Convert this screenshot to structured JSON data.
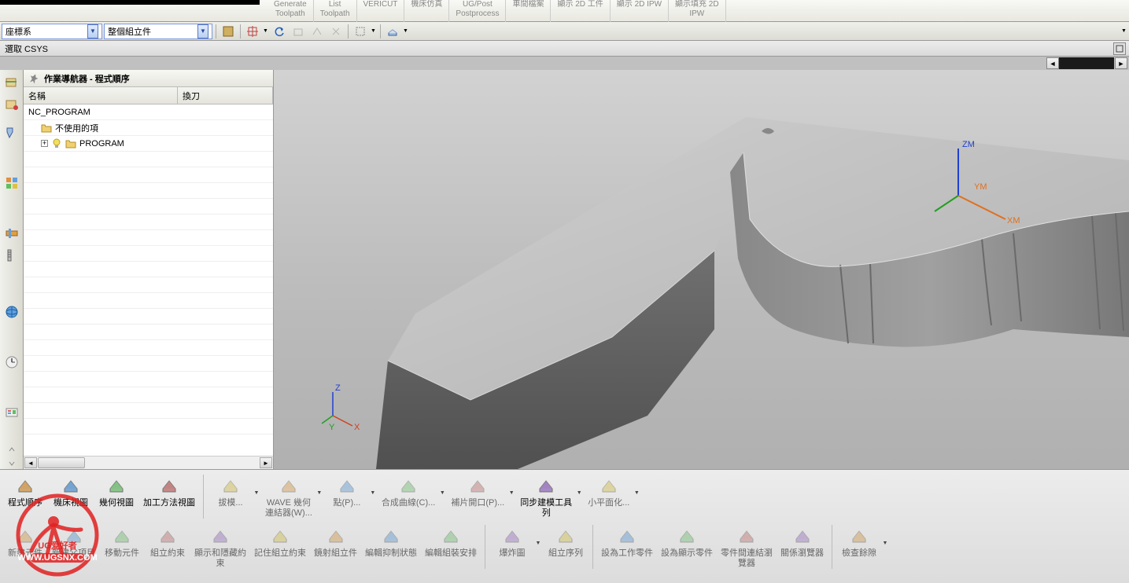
{
  "ribbon": {
    "groups": [
      {
        "line1": "Generate",
        "line2": "Toolpath"
      },
      {
        "line1": "List",
        "line2": "Toolpath"
      },
      {
        "line1": "VERICUT",
        "line2": ""
      },
      {
        "line1": "機床仿真",
        "line2": ""
      },
      {
        "line1": "UG/Post",
        "line2": "Postprocess"
      },
      {
        "line1": "車間檔案",
        "line2": ""
      },
      {
        "line1": "顯示 2D 工件",
        "line2": ""
      },
      {
        "line1": "顯示 2D IPW",
        "line2": ""
      },
      {
        "line1": "顯示填充 2D",
        "line2": "IPW"
      }
    ]
  },
  "toolbar2": {
    "combo1": "座標系",
    "combo2": "整個組立件"
  },
  "statusbar": {
    "text": "選取 CSYS"
  },
  "navigator": {
    "title": "作業導航器 - 程式順序",
    "columns": {
      "col1": "名稱",
      "col2": "換刀"
    },
    "rows": [
      {
        "icon": "none",
        "label": "NC_PROGRAM",
        "indent": 0,
        "expand": ""
      },
      {
        "icon": "folder",
        "label": "不使用的項",
        "indent": 1,
        "expand": ""
      },
      {
        "icon": "bulb",
        "label": "PROGRAM",
        "indent": 1,
        "expand": "+"
      }
    ]
  },
  "axes": {
    "main": {
      "x": "XM",
      "y": "YM",
      "z": "ZM",
      "x_color": "#e07020",
      "y_color": "#20a020",
      "z_color": "#2040d0"
    },
    "small": {
      "x": "X",
      "y": "Y",
      "z": "Z",
      "x_color": "#d04020",
      "y_color": "#20a020",
      "z_color": "#2040d0"
    }
  },
  "bottomToolbar": {
    "row1": [
      {
        "label": "程式順序",
        "disabled": false
      },
      {
        "label": "機床視圖",
        "disabled": false
      },
      {
        "label": "幾何視圖",
        "disabled": false
      },
      {
        "label": "加工方法視圖",
        "disabled": false
      },
      {
        "sep": true
      },
      {
        "label": "拔模...",
        "disabled": true,
        "dd": true
      },
      {
        "label": "WAVE 幾何\n連結器(W)...",
        "disabled": true,
        "dd": true
      },
      {
        "label": "點(P)...",
        "disabled": true,
        "dd": true
      },
      {
        "label": "合成曲線(C)...",
        "disabled": true,
        "dd": true
      },
      {
        "label": "補片開口(P)...",
        "disabled": true,
        "dd": true
      },
      {
        "label": "同步建模工具\n列",
        "disabled": false,
        "dd": true
      },
      {
        "label": "小平面化...",
        "disabled": true,
        "dd": true
      }
    ],
    "row2": [
      {
        "label": "新建元件",
        "disabled": true
      },
      {
        "label": "新建父項目",
        "disabled": true
      },
      {
        "label": "移動元件",
        "disabled": true
      },
      {
        "label": "組立約束",
        "disabled": true
      },
      {
        "label": "顯示和隱藏約\n束",
        "disabled": true
      },
      {
        "label": "記住組立約束",
        "disabled": true
      },
      {
        "label": "鏡射組立件",
        "disabled": true
      },
      {
        "label": "編輯抑制狀態",
        "disabled": true
      },
      {
        "label": "編輯組裝安排",
        "disabled": true
      },
      {
        "sep": true
      },
      {
        "label": "爆炸圖",
        "disabled": true,
        "dd": true
      },
      {
        "label": "組立序列",
        "disabled": true
      },
      {
        "sep": true
      },
      {
        "label": "設為工作零件",
        "disabled": true
      },
      {
        "label": "設為顯示零件",
        "disabled": true
      },
      {
        "label": "零件間連結瀏\n覽器",
        "disabled": true
      },
      {
        "label": "關係瀏覽器",
        "disabled": true
      },
      {
        "sep": true
      },
      {
        "label": "檢查餘隙",
        "disabled": true,
        "dd": true
      }
    ]
  },
  "watermark": {
    "text1": "UG爱好者",
    "text2": "WWW.UGSNX.COM"
  },
  "colors": {
    "model_top": "#bdbdbd",
    "model_side_dark": "#606060",
    "model_side_mid": "#787878",
    "model_curve": "#929292"
  }
}
